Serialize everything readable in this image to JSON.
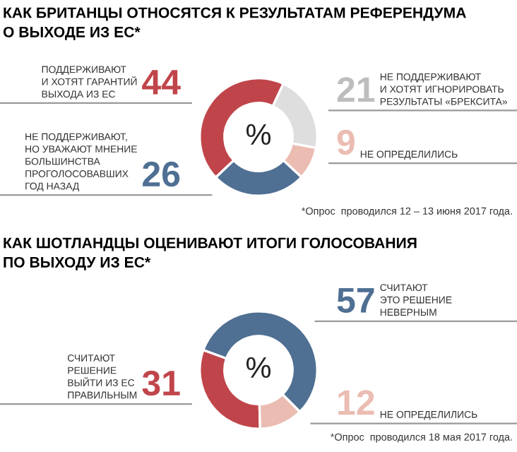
{
  "chart_data": [
    {
      "type": "donut",
      "title": "КАК БРИТАНЦЫ ОТНОСЯТСЯ К РЕЗУЛЬТАТАМ РЕФЕРЕНДУМА\nО ВЫХОДЕ ИЗ ЕС*",
      "categories": [
        "ПОДДЕРЖИВАЮТ\nИ ХОТЯТ ГАРАНТИЙ\nВЫХОДА ИЗ ЕС",
        "НЕ ПОДДЕРЖИВАЮТ,\nНО УВАЖАЮТ МНЕНИЕ\nБОЛЬШИНСТВА\nПРОГОЛОСОВАВШИХ\nГОД НАЗАД",
        "НЕ ОПРЕДЕЛИЛИСЬ",
        "НЕ ПОДДЕРЖИВАЮТ\nИ ХОТЯТ ИГНОРИРОВАТЬ\nРЕЗУЛЬТАТЫ «БРЕКСИТА»"
      ],
      "values": [
        44,
        26,
        9,
        21
      ],
      "colors": [
        "#c0454a",
        "#4f6f93",
        "#ebbcb2",
        "#dedede"
      ],
      "data_labels": true,
      "annotations": [
        "%",
        "*Опрос  проводился 12 – 13 июня 2017 года."
      ]
    },
    {
      "type": "donut",
      "title": "КАК ШОТЛАНДЦЫ ОЦЕНИВАЮТ ИТОГИ ГОЛОСОВАНИЯ\nПО ВЫХОДУ ИЗ ЕС*",
      "categories": [
        "СЧИТАЮТ\nРЕШЕНИЕ\nВЫЙТИ ИЗ ЕС\nПРАВИЛЬНЫМ",
        "НЕ ОПРЕДЕЛИЛИСЬ",
        "СЧИТАЮТ\nЭТО РЕШЕНИЕ\nНЕВЕРНЫМ"
      ],
      "values": [
        31,
        12,
        57
      ],
      "colors": [
        "#c0454a",
        "#ebbcb2",
        "#4f6f93"
      ],
      "data_labels": true,
      "annotations": [
        "%",
        "*Опрос  проводился 18 мая 2017 года."
      ]
    }
  ]
}
